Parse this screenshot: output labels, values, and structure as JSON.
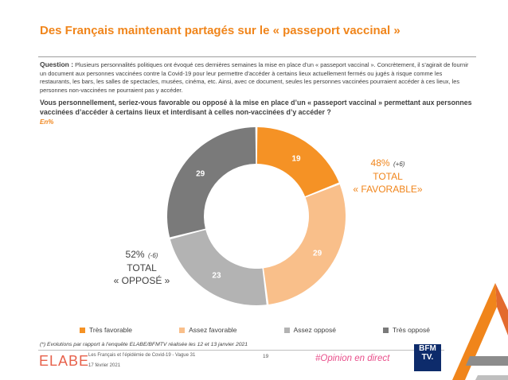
{
  "title": "Des Français maintenant partagés sur le « passeport vaccinal »",
  "question": {
    "label": "Question :",
    "text": "Plusieurs personnalités politiques ont évoqué ces dernières semaines la mise en place d’un « passeport vaccinal ». Concrètement, il s’agirait de fournir un document aux personnes vaccinées contre la Covid-19 pour leur permettre d’accéder à certains lieux actuellement fermés ou jugés à risque comme les restaurants, les bars, les salles de spectacles, musées, cinéma, etc. Ainsi, avec ce document, seules les personnes vaccinées pourraient accéder à ces lieux, les personnes non-vaccinées ne pourraient pas y accéder.",
    "bold": "Vous personnellement, seriez-vous favorable ou opposé à la mise en place d’un « passeport vaccinal » permettant aux personnes vaccinées d’accéder à certains lieux et interdisant à celles non-vaccinées d’y accéder ?",
    "unit": "En%"
  },
  "chart_data": {
    "type": "pie",
    "categories": [
      "Très favorable",
      "Assez favorable",
      "Assez opposé",
      "Très opposé"
    ],
    "values": [
      19,
      29,
      23,
      29
    ],
    "colors": [
      "#f59225",
      "#f9bf8a",
      "#b3b3b3",
      "#7a7a7a"
    ],
    "label_colors": [
      "#ffffff",
      "#ffffff",
      "#ffffff",
      "#ffffff"
    ],
    "donut": true,
    "legend_position": "bottom"
  },
  "totals": {
    "favorable": {
      "pct": "48%",
      "delta": "(+6)",
      "label1": "TOTAL",
      "label2": "« FAVORABLE»"
    },
    "oppose": {
      "pct": "52%",
      "delta": "(-6)",
      "label1": "TOTAL",
      "label2": "« OPPOSÉ »"
    }
  },
  "footnote": "(*) Evolutions par rapport à l’enquête ELABE/BFMTV réalisée les 12 et 13 janvier 2021",
  "footer": {
    "logo": "ELABE",
    "survey": "Les Français et l’épidémie de Covid-19 - Vague 31",
    "date": "17 février 2021",
    "page": "19",
    "hashtag": "#Opinion en direct",
    "bfm_line1": "BFM",
    "bfm_line2": "TV."
  }
}
